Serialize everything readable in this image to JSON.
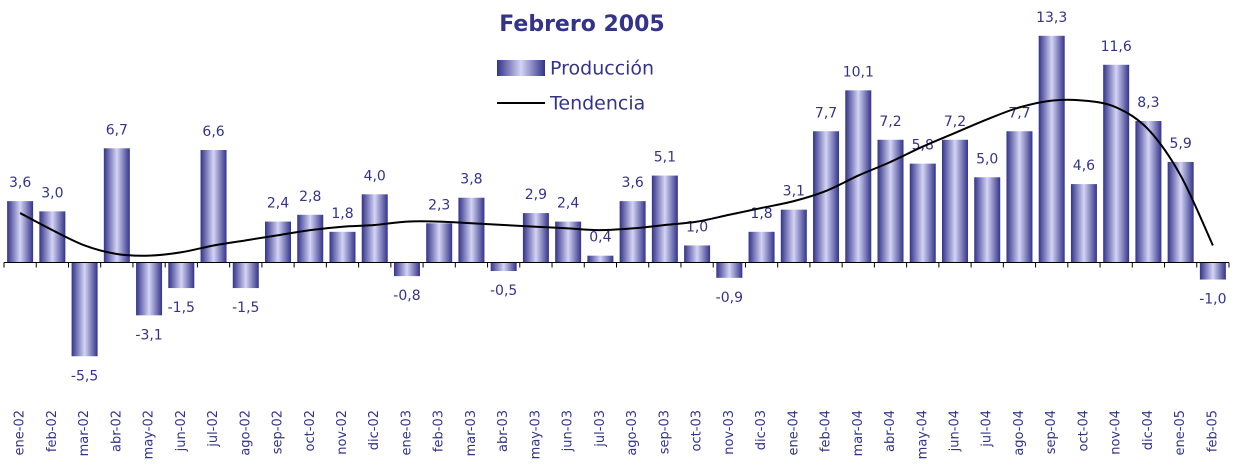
{
  "chart_data": {
    "type": "bar",
    "title": "Febrero 2005",
    "categories": [
      "ene-02",
      "feb-02",
      "mar-02",
      "abr-02",
      "may-02",
      "jun-02",
      "jul-02",
      "ago-02",
      "sep-02",
      "oct-02",
      "nov-02",
      "dic-02",
      "ene-03",
      "feb-03",
      "mar-03",
      "abr-03",
      "may-03",
      "jun-03",
      "jul-03",
      "ago-03",
      "sep-03",
      "oct-03",
      "nov-03",
      "dic-03",
      "ene-04",
      "feb-04",
      "mar-04",
      "abr-04",
      "may-04",
      "jun-04",
      "jul-04",
      "ago-04",
      "sep-04",
      "oct-04",
      "nov-04",
      "dic-04",
      "ene-05",
      "feb-05"
    ],
    "series": [
      {
        "name": "Producción",
        "color": "#33338a",
        "values": [
          3.6,
          3.0,
          -5.5,
          6.7,
          -3.1,
          -1.5,
          6.6,
          -1.5,
          2.4,
          2.8,
          1.8,
          4.0,
          -0.8,
          2.3,
          3.8,
          -0.5,
          2.9,
          2.4,
          0.4,
          3.6,
          5.1,
          1.0,
          -0.9,
          1.8,
          3.1,
          7.7,
          10.1,
          7.2,
          5.8,
          7.2,
          5.0,
          7.7,
          13.3,
          4.6,
          11.6,
          8.3,
          5.9,
          -1.0
        ],
        "value_labels": [
          "3,6",
          "3,0",
          "-5,5",
          "6,7",
          "-3,1",
          "-1,5",
          "6,6",
          "-1,5",
          "2,4",
          "2,8",
          "1,8",
          "4,0",
          "-0,8",
          "2,3",
          "3,8",
          "-0,5",
          "2,9",
          "2,4",
          "0,4",
          "3,6",
          "5,1",
          "1,0",
          "-0,9",
          "1,8",
          "3,1",
          "7,7",
          "10,1",
          "7,2",
          "5,8",
          "7,2",
          "5,0",
          "7,7",
          "13,3",
          "4,6",
          "11,6",
          "8,3",
          "5,9",
          "-1,0"
        ]
      },
      {
        "name": "Tendencia",
        "color": "#000000",
        "type": "line",
        "values": [
          2.9,
          1.9,
          1.0,
          0.5,
          0.4,
          0.6,
          1.0,
          1.3,
          1.6,
          1.9,
          2.1,
          2.2,
          2.4,
          2.4,
          2.3,
          2.2,
          2.1,
          2.0,
          1.9,
          2.0,
          2.2,
          2.4,
          2.8,
          3.2,
          3.6,
          4.2,
          5.1,
          5.9,
          6.8,
          7.6,
          8.4,
          9.1,
          9.5,
          9.5,
          9.1,
          7.8,
          5.1,
          1.0
        ]
      }
    ],
    "ylim": [
      -6.6,
      15.4
    ]
  }
}
